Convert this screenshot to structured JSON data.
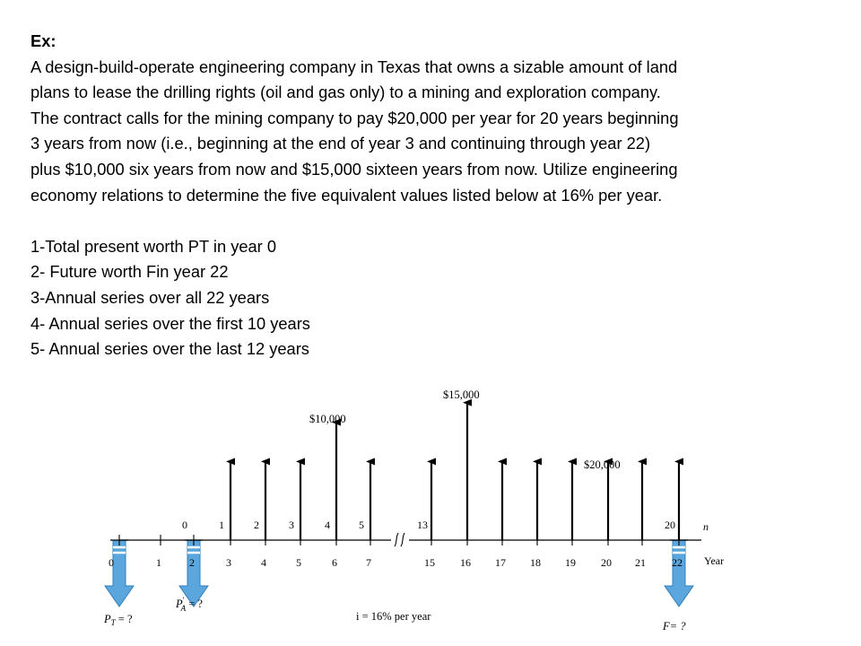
{
  "problem": {
    "heading": "Ex:",
    "lines": [
      "A design-build-operate engineering company in Texas that owns a sizable amount of land",
      "plans to lease the drilling rights (oil and gas only) to a mining and exploration company.",
      "The contract calls for the mining company to pay $20,000 per year for 20 years beginning",
      "3 years from now (i.e., beginning at the end of year 3 and continuing through year 22)",
      "plus $10,000 six years from now and $15,000 sixteen years from now. Utilize engineering",
      "economy relations to determine the five equivalent values listed below at 16% per year."
    ],
    "items": [
      "1-Total present worth PT in year 0",
      "2- Future worth Fin year 22",
      "3-Annual series over all 22 years",
      "4- Annual series over the first 10 years",
      "5- Annual series over the last 12 years"
    ]
  },
  "diagram": {
    "label_10000": "$10,000",
    "label_15000": "$15,000",
    "label_20000": "$20,000",
    "pt_label": "P",
    "pt_sub": "T",
    "pt_tail": " = ?",
    "pa_label": "P",
    "pa_sub": "A",
    "pa_prime": "′",
    "pa_tail": " = ?",
    "f_label": "F= ?",
    "interest": "i = 16% per year",
    "axis_year": "Year",
    "axis_n": "n",
    "bottom_ticks": [
      {
        "label": "0",
        "year": 0
      },
      {
        "label": "1",
        "year": 1
      },
      {
        "label": "2",
        "year": 2
      },
      {
        "label": "3",
        "year": 3
      },
      {
        "label": "4",
        "year": 4
      },
      {
        "label": "5",
        "year": 5
      },
      {
        "label": "6",
        "year": 6
      },
      {
        "label": "7",
        "year": 7
      },
      {
        "label": "15",
        "year": 15
      },
      {
        "label": "16",
        "year": 16
      },
      {
        "label": "17",
        "year": 17
      },
      {
        "label": "18",
        "year": 18
      },
      {
        "label": "19",
        "year": 19
      },
      {
        "label": "20",
        "year": 20
      },
      {
        "label": "21",
        "year": 21
      },
      {
        "label": "22",
        "year": 22
      }
    ],
    "top_ticks": [
      {
        "label": "0",
        "year": 2
      },
      {
        "label": "1",
        "year": 3
      },
      {
        "label": "2",
        "year": 4
      },
      {
        "label": "3",
        "year": 5
      },
      {
        "label": "4",
        "year": 6
      },
      {
        "label": "5",
        "year": 7
      },
      {
        "label": "13",
        "year": 15
      },
      {
        "label": "20",
        "year": 22
      }
    ],
    "cash_flows": [
      {
        "year": 3,
        "amount": 20000
      },
      {
        "year": 4,
        "amount": 20000
      },
      {
        "year": 5,
        "amount": 20000
      },
      {
        "year": 6,
        "amount": 30000
      },
      {
        "year": 7,
        "amount": 20000
      },
      {
        "year": 15,
        "amount": 20000
      },
      {
        "year": 16,
        "amount": 35000
      },
      {
        "year": 17,
        "amount": 20000
      },
      {
        "year": 18,
        "amount": 20000
      },
      {
        "year": 19,
        "amount": 20000
      },
      {
        "year": 20,
        "amount": 20000
      },
      {
        "year": 21,
        "amount": 20000
      },
      {
        "year": 22,
        "amount": 20000
      }
    ],
    "equivalents": [
      {
        "key": "pt",
        "year": 0
      },
      {
        "key": "pa",
        "year": 2
      },
      {
        "key": "f",
        "year": 22
      }
    ],
    "colors": {
      "arrow": "#000000",
      "equivalent_fill": "#5ba6dc",
      "equivalent_stroke": "#2f7fbe"
    }
  }
}
